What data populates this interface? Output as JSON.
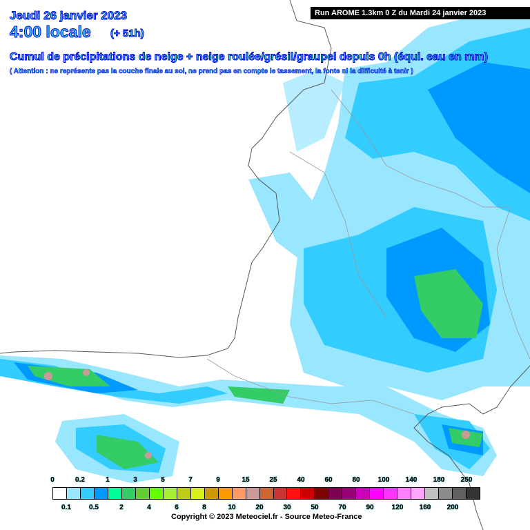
{
  "header": {
    "date": "Jeudi 26 janvier 2023",
    "local_time": "4:00 locale",
    "lead_time": "(+ 51h)",
    "run_info": "Run AROME 1.3km 0 Z du Mardi 24 janvier 2023",
    "title": "Cumul de précipitations de neige + neige roulée/grésil/graupel depuis 0h (équi. eau en mm)",
    "warning": "( Attention : ne représente pas la couche finale au sol, ne prend pas en compte le tassement, la fonte ni la difficulté à tenir )"
  },
  "legend": {
    "unit": "mm",
    "top_labels": [
      "0",
      "0.2",
      "1",
      "3",
      "5",
      "7",
      "9",
      "15",
      "25",
      "40",
      "60",
      "80",
      "100",
      "140",
      "180",
      "250"
    ],
    "bottom_labels": [
      "0.1",
      "0.5",
      "2",
      "4",
      "6",
      "8",
      "10",
      "20",
      "30",
      "50",
      "70",
      "90",
      "120",
      "160",
      "200"
    ],
    "colors": [
      "#ffffff",
      "#99e6ff",
      "#33ccff",
      "#0099ff",
      "#00ff99",
      "#33cc66",
      "#66cc33",
      "#66ff00",
      "#a6f030",
      "#bfcc14",
      "#d9f014",
      "#cc9900",
      "#ff9900",
      "#ff9966",
      "#cc9999",
      "#cc6633",
      "#cc3333",
      "#ff1111",
      "#cc0000",
      "#800000",
      "#800050",
      "#990077",
      "#cc00bb",
      "#ff00ff",
      "#ff33ff",
      "#ff80ff",
      "#ffa6ff",
      "#c0c0c0",
      "#8c8c8c",
      "#606060",
      "#333333"
    ]
  },
  "copyright": "Copyright © 2023 Meteociel.fr - Source Meteo-France"
}
